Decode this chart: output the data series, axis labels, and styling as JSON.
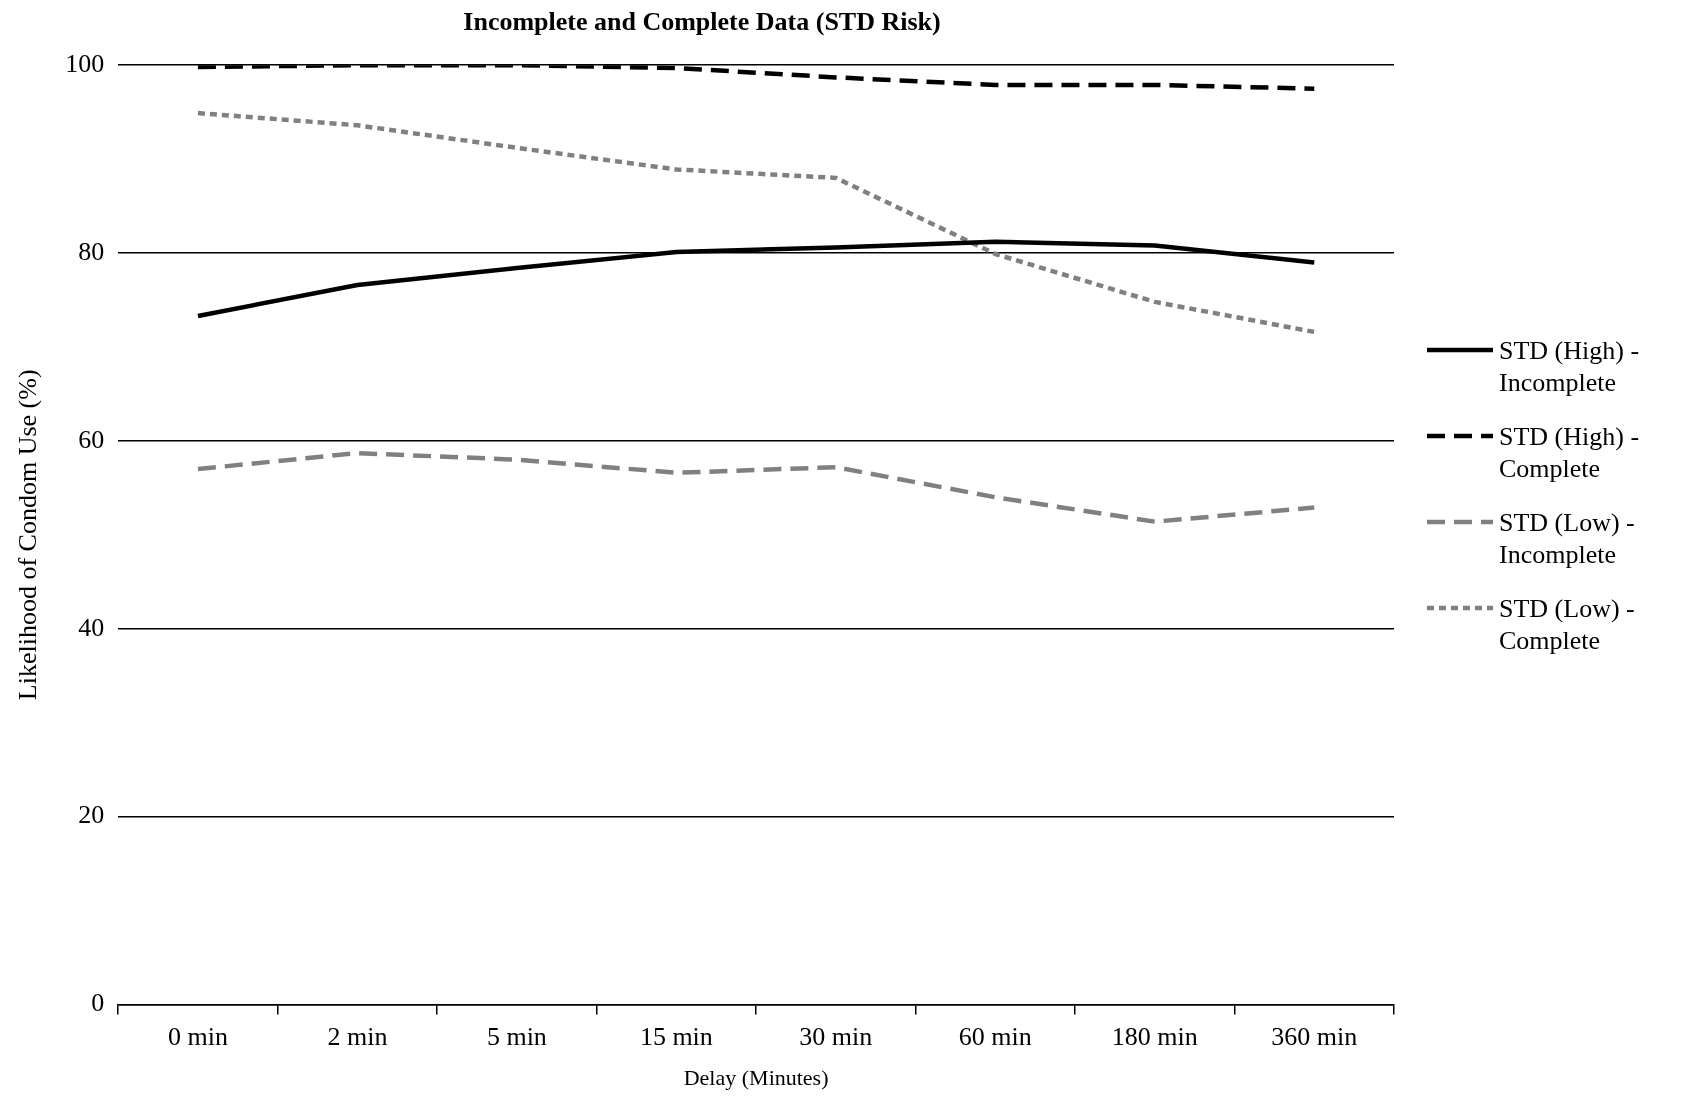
{
  "chart_data": {
    "type": "line",
    "title": "Incomplete and Complete Data (STD Risk)",
    "xlabel": "Delay (Minutes)",
    "ylabel": "Likelihood of Condom Use (%)",
    "categories": [
      "0 min",
      "2 min",
      "5 min",
      "15 min",
      "30 min",
      "60 min",
      "180 min",
      "360 min"
    ],
    "series": [
      {
        "name": "STD (High) - Incomplete",
        "color": "#000000",
        "line_style": "solid",
        "values": [
          73.3,
          76.6,
          78.4,
          80.1,
          80.6,
          81.2,
          80.8,
          79.0
        ]
      },
      {
        "name": "STD (High) - Complete",
        "color": "#000000",
        "line_style": "dashed",
        "values": [
          99.8,
          100,
          100,
          99.7,
          98.7,
          97.9,
          97.9,
          97.5
        ]
      },
      {
        "name": "STD (Low) - Incomplete",
        "color": "#808080",
        "line_style": "dashed",
        "values": [
          57.0,
          58.7,
          58.0,
          56.6,
          57.2,
          54.0,
          51.4,
          52.9
        ]
      },
      {
        "name": "STD (Low) - Complete",
        "color": "#808080",
        "line_style": "dotted",
        "values": [
          94.9,
          93.6,
          91.2,
          88.9,
          88.0,
          79.9,
          74.8,
          71.6
        ]
      }
    ],
    "ylim": [
      0,
      100
    ],
    "yticks": [
      0,
      20,
      40,
      60,
      80,
      100
    ],
    "grid": "y",
    "legend": "right",
    "marker": "none"
  }
}
